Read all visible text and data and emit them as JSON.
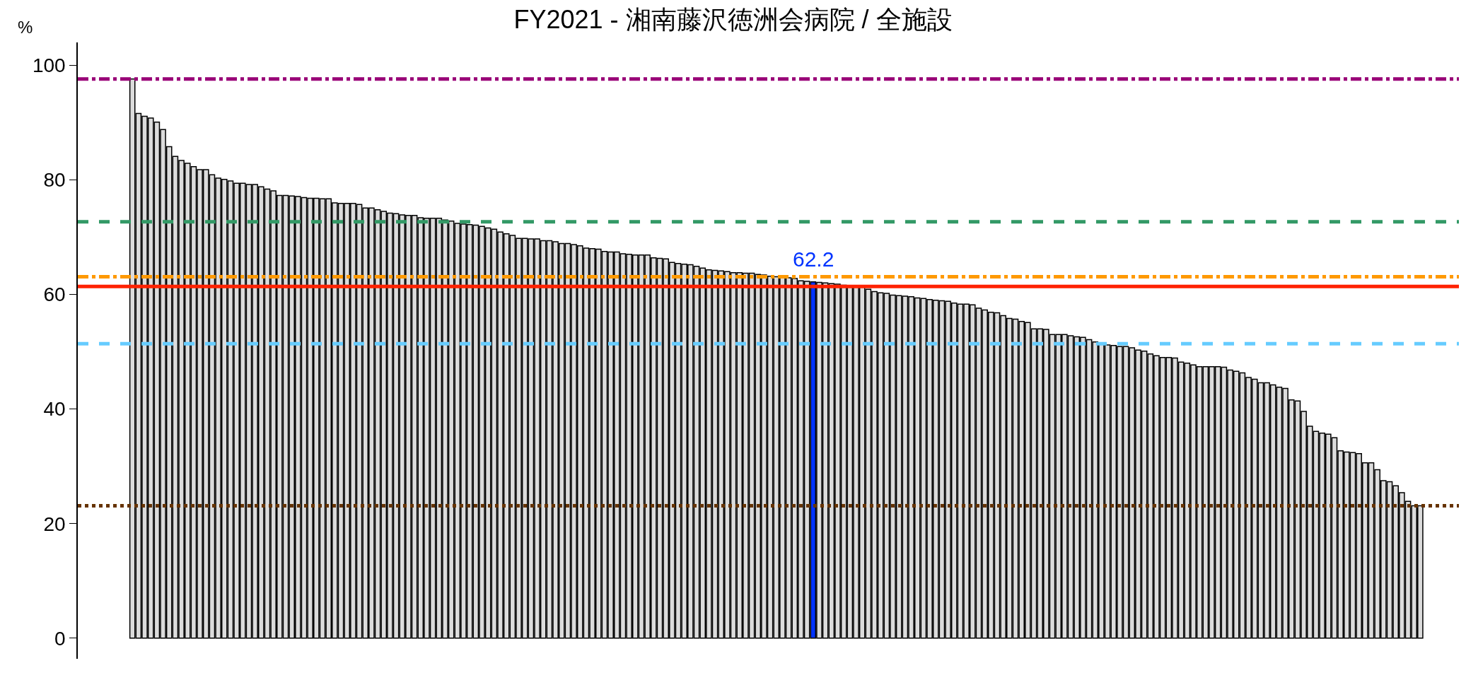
{
  "chart_data": {
    "type": "bar",
    "title": "FY2021 - 湘南藤沢徳洲会病院 / 全施設",
    "ylabel": "%",
    "categories": [
      null,
      null,
      null,
      null,
      null,
      null,
      null,
      null,
      null,
      null,
      null,
      null,
      null,
      null,
      null,
      null,
      null,
      null,
      null,
      null,
      null,
      null,
      null,
      null,
      null,
      null,
      null,
      null,
      null,
      null,
      null,
      null,
      null,
      null,
      null,
      null,
      null,
      null,
      null,
      null,
      null,
      null,
      null,
      null,
      null,
      null,
      null,
      null,
      null,
      null,
      null,
      null,
      null,
      null,
      null,
      null,
      null,
      null,
      null,
      null,
      null,
      null,
      null,
      null,
      null,
      null,
      null,
      null,
      null,
      null,
      null,
      null,
      null,
      null,
      null,
      null,
      null,
      null,
      null,
      null,
      null,
      null,
      null,
      null,
      null,
      null,
      null,
      null,
      null,
      null,
      null,
      null,
      null,
      null,
      null,
      null,
      null,
      null,
      null,
      null,
      null,
      null,
      null,
      null,
      null,
      null,
      null,
      null,
      null,
      null,
      null,
      null,
      null,
      null,
      null,
      null,
      null,
      null,
      null,
      null,
      null,
      null,
      null,
      null,
      null,
      null,
      null,
      null,
      null,
      null,
      null,
      null,
      null,
      null,
      null,
      null,
      null,
      null,
      null,
      null,
      null,
      null,
      null,
      null,
      null,
      null,
      null,
      null,
      null,
      null,
      null,
      null,
      null,
      null,
      null,
      null,
      null,
      null,
      null,
      null,
      null,
      null,
      null,
      null,
      null,
      null,
      null,
      null,
      null,
      null,
      null,
      null,
      null,
      null,
      null,
      null,
      null,
      null,
      null,
      null,
      null,
      null,
      null,
      null,
      null,
      null,
      null,
      null,
      null,
      null,
      null,
      null,
      null,
      null,
      null,
      null,
      null,
      null,
      null,
      null,
      null,
      null,
      null,
      null,
      null,
      null,
      null,
      null,
      null,
      null,
      null
    ],
    "values": [
      97.6,
      91.6,
      91.1,
      90.8,
      90.1,
      88.8,
      85.8,
      84.1,
      83.4,
      82.9,
      82.3,
      81.8,
      81.8,
      80.9,
      80.3,
      80.1,
      79.8,
      79.4,
      79.4,
      79.2,
      79.2,
      78.8,
      78.4,
      78.1,
      77.3,
      77.3,
      77.2,
      77.1,
      76.9,
      76.8,
      76.8,
      76.7,
      76.7,
      76.0,
      75.9,
      75.9,
      75.9,
      75.7,
      75.1,
      75.1,
      74.8,
      74.5,
      74.2,
      74.1,
      73.9,
      73.8,
      73.8,
      73.4,
      73.3,
      73.3,
      73.3,
      73.0,
      72.8,
      72.4,
      72.3,
      72.2,
      72.1,
      71.9,
      71.6,
      71.4,
      70.9,
      70.6,
      70.3,
      69.8,
      69.8,
      69.7,
      69.7,
      69.4,
      69.4,
      69.2,
      68.9,
      68.9,
      68.7,
      68.5,
      68.1,
      68.0,
      67.9,
      67.5,
      67.4,
      67.4,
      67.1,
      67.0,
      66.9,
      66.9,
      66.9,
      66.4,
      66.3,
      66.2,
      65.6,
      65.4,
      65.3,
      65.2,
      64.9,
      64.6,
      64.3,
      64.2,
      64.1,
      64.0,
      63.8,
      63.8,
      63.7,
      63.7,
      63.5,
      63.4,
      63.2,
      63.1,
      63.1,
      62.9,
      62.8,
      62.4,
      62.3,
      62.2,
      62.1,
      62.0,
      61.9,
      61.8,
      61.6,
      61.5,
      61.5,
      61.4,
      60.9,
      60.5,
      60.3,
      60.2,
      59.9,
      59.8,
      59.7,
      59.6,
      59.4,
      59.3,
      59.1,
      59.0,
      58.9,
      58.8,
      58.5,
      58.3,
      58.3,
      58.2,
      57.6,
      57.3,
      56.9,
      56.8,
      56.3,
      55.8,
      55.7,
      55.3,
      55.1,
      54.0,
      54.0,
      53.9,
      53.0,
      53.0,
      53.0,
      52.8,
      52.6,
      52.5,
      52.1,
      51.7,
      51.4,
      51.2,
      51.1,
      50.9,
      50.9,
      50.7,
      50.3,
      50.1,
      49.6,
      49.3,
      49.0,
      49.0,
      48.9,
      48.2,
      48.0,
      47.7,
      47.4,
      47.4,
      47.4,
      47.4,
      47.3,
      46.8,
      46.6,
      46.3,
      45.5,
      45.2,
      44.6,
      44.6,
      44.2,
      43.8,
      43.6,
      41.6,
      41.4,
      39.6,
      37.0,
      36.1,
      35.8,
      35.6,
      35.0,
      32.7,
      32.5,
      32.4,
      32.2,
      30.6,
      30.6,
      29.4,
      27.5,
      27.3,
      26.6,
      25.4,
      23.9,
      23.1,
      23.1
    ],
    "colors": [
      "#dcdcdc",
      "#dcdcdc",
      "#dcdcdc",
      "#dcdcdc",
      "#dcdcdc",
      "#dcdcdc",
      "#dcdcdc",
      "#dcdcdc",
      "#dcdcdc",
      "#dcdcdc",
      "#dcdcdc",
      "#dcdcdc",
      "#dcdcdc",
      "#dcdcdc",
      "#dcdcdc",
      "#dcdcdc",
      "#dcdcdc",
      "#dcdcdc",
      "#dcdcdc",
      "#dcdcdc",
      "#dcdcdc",
      "#dcdcdc",
      "#dcdcdc",
      "#dcdcdc",
      "#dcdcdc",
      "#dcdcdc",
      "#dcdcdc",
      "#dcdcdc",
      "#dcdcdc",
      "#dcdcdc",
      "#dcdcdc",
      "#dcdcdc",
      "#dcdcdc",
      "#dcdcdc",
      "#dcdcdc",
      "#dcdcdc",
      "#dcdcdc",
      "#dcdcdc",
      "#dcdcdc",
      "#dcdcdc",
      "#dcdcdc",
      "#dcdcdc",
      "#dcdcdc",
      "#dcdcdc",
      "#dcdcdc",
      "#dcdcdc",
      "#dcdcdc",
      "#dcdcdc",
      "#dcdcdc",
      "#dcdcdc",
      "#dcdcdc",
      "#dcdcdc",
      "#dcdcdc",
      "#dcdcdc",
      "#dcdcdc",
      "#dcdcdc",
      "#dcdcdc",
      "#dcdcdc",
      "#dcdcdc",
      "#dcdcdc",
      "#dcdcdc",
      "#dcdcdc",
      "#dcdcdc",
      "#dcdcdc",
      "#dcdcdc",
      "#dcdcdc",
      "#dcdcdc",
      "#dcdcdc",
      "#dcdcdc",
      "#dcdcdc",
      "#dcdcdc",
      "#dcdcdc",
      "#dcdcdc",
      "#dcdcdc",
      "#dcdcdc",
      "#dcdcdc",
      "#dcdcdc",
      "#dcdcdc",
      "#dcdcdc",
      "#dcdcdc",
      "#dcdcdc",
      "#dcdcdc",
      "#dcdcdc",
      "#dcdcdc",
      "#dcdcdc",
      "#dcdcdc",
      "#dcdcdc",
      "#dcdcdc",
      "#dcdcdc",
      "#dcdcdc",
      "#dcdcdc",
      "#dcdcdc",
      "#dcdcdc",
      "#dcdcdc",
      "#dcdcdc",
      "#dcdcdc",
      "#dcdcdc",
      "#dcdcdc",
      "#dcdcdc",
      "#dcdcdc",
      "#dcdcdc",
      "#dcdcdc",
      "#dcdcdc",
      "#dcdcdc",
      "#dcdcdc",
      "#dcdcdc",
      "#dcdcdc",
      "#dcdcdc",
      "#dcdcdc",
      "#dcdcdc",
      "#dcdcdc",
      "#0033ff",
      "#dcdcdc",
      "#dcdcdc",
      "#dcdcdc",
      "#dcdcdc",
      "#dcdcdc",
      "#dcdcdc",
      "#dcdcdc",
      "#dcdcdc",
      "#dcdcdc",
      "#dcdcdc",
      "#dcdcdc",
      "#dcdcdc",
      "#dcdcdc",
      "#dcdcdc",
      "#dcdcdc",
      "#dcdcdc",
      "#dcdcdc",
      "#dcdcdc",
      "#dcdcdc",
      "#dcdcdc",
      "#dcdcdc",
      "#dcdcdc",
      "#dcdcdc",
      "#dcdcdc",
      "#dcdcdc",
      "#dcdcdc",
      "#dcdcdc",
      "#dcdcdc",
      "#dcdcdc",
      "#dcdcdc",
      "#dcdcdc",
      "#dcdcdc",
      "#dcdcdc",
      "#dcdcdc",
      "#dcdcdc",
      "#dcdcdc",
      "#dcdcdc",
      "#dcdcdc",
      "#dcdcdc",
      "#dcdcdc",
      "#dcdcdc",
      "#dcdcdc",
      "#dcdcdc",
      "#dcdcdc",
      "#dcdcdc",
      "#dcdcdc",
      "#dcdcdc",
      "#dcdcdc",
      "#dcdcdc",
      "#dcdcdc",
      "#dcdcdc",
      "#dcdcdc",
      "#dcdcdc",
      "#dcdcdc",
      "#dcdcdc",
      "#dcdcdc",
      "#dcdcdc",
      "#dcdcdc",
      "#dcdcdc",
      "#dcdcdc",
      "#dcdcdc",
      "#dcdcdc",
      "#dcdcdc",
      "#dcdcdc",
      "#dcdcdc",
      "#dcdcdc",
      "#dcdcdc",
      "#dcdcdc",
      "#dcdcdc",
      "#dcdcdc",
      "#dcdcdc",
      "#dcdcdc",
      "#dcdcdc",
      "#dcdcdc",
      "#dcdcdc",
      "#dcdcdc",
      "#dcdcdc",
      "#dcdcdc",
      "#dcdcdc",
      "#dcdcdc",
      "#dcdcdc",
      "#dcdcdc",
      "#dcdcdc",
      "#dcdcdc",
      "#dcdcdc",
      "#dcdcdc",
      "#dcdcdc",
      "#dcdcdc",
      "#dcdcdc",
      "#dcdcdc",
      "#dcdcdc",
      "#dcdcdc",
      "#dcdcdc",
      "#dcdcdc",
      "#dcdcdc",
      "#dcdcdc",
      "#dcdcdc",
      "#dcdcdc",
      "#dcdcdc"
    ],
    "value_labels": [
      null,
      null,
      null,
      null,
      null,
      null,
      null,
      null,
      null,
      null,
      null,
      null,
      null,
      null,
      null,
      null,
      null,
      null,
      null,
      null,
      null,
      null,
      null,
      null,
      null,
      null,
      null,
      null,
      null,
      null,
      null,
      null,
      null,
      null,
      null,
      null,
      null,
      null,
      null,
      null,
      null,
      null,
      null,
      null,
      null,
      null,
      null,
      null,
      null,
      null,
      null,
      null,
      null,
      null,
      null,
      null,
      null,
      null,
      null,
      null,
      null,
      null,
      null,
      null,
      null,
      null,
      null,
      null,
      null,
      null,
      null,
      null,
      null,
      null,
      null,
      null,
      null,
      null,
      null,
      null,
      null,
      null,
      null,
      null,
      null,
      null,
      null,
      null,
      null,
      null,
      null,
      null,
      null,
      null,
      null,
      null,
      null,
      null,
      null,
      null,
      null,
      null,
      null,
      null,
      null,
      null,
      null,
      null,
      null,
      null,
      null,
      "62.2",
      null,
      null,
      null,
      null,
      null,
      null,
      null,
      null,
      null,
      null,
      null,
      null,
      null,
      null,
      null,
      null,
      null,
      null,
      null,
      null,
      null,
      null,
      null,
      null,
      null,
      null,
      null,
      null,
      null,
      null,
      null,
      null,
      null,
      null,
      null,
      null,
      null,
      null,
      null,
      null,
      null,
      null,
      null,
      null,
      null,
      null,
      null,
      null,
      null,
      null,
      null,
      null,
      null,
      null,
      null,
      null,
      null,
      null,
      null,
      null,
      null,
      null,
      null,
      null,
      null,
      null,
      null,
      null,
      null,
      null,
      null,
      null,
      null,
      null,
      null,
      null,
      null,
      null,
      null,
      null,
      null,
      null,
      null,
      null,
      null,
      null,
      null,
      null,
      null,
      null,
      null,
      null,
      null,
      null,
      null,
      null,
      null,
      null,
      null
    ],
    "ylim": [
      -3.6,
      104
    ],
    "yticks": [
      0,
      20,
      40,
      60,
      80,
      100
    ],
    "tick_labels": "y",
    "ref_lines": [
      {
        "axis": "y",
        "value": 97.6,
        "color": "#990077",
        "line_style": "dashdot"
      },
      {
        "axis": "y",
        "value": 72.7,
        "color": "#339966",
        "line_style": "dashed"
      },
      {
        "axis": "y",
        "value": 63.1,
        "color": "#ff9900",
        "line_style": "dashdot"
      },
      {
        "axis": "y",
        "value": 61.4,
        "color": "#ff2200",
        "line_style": "solid"
      },
      {
        "axis": "y",
        "value": 51.4,
        "color": "#66ccff",
        "line_style": "dashed"
      },
      {
        "axis": "y",
        "value": 23.1,
        "color": "#663300",
        "line_style": "dotted"
      }
    ]
  }
}
